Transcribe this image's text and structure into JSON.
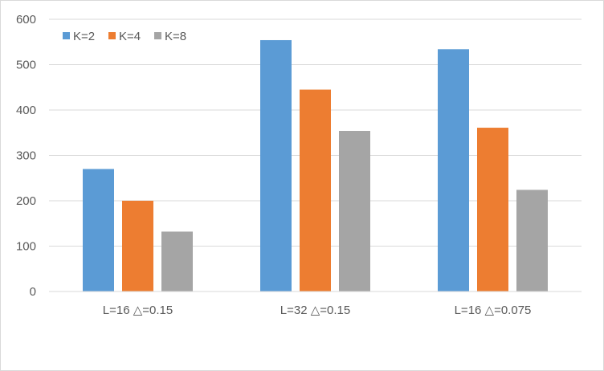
{
  "chart_data": {
    "type": "bar",
    "title": "",
    "xlabel": "",
    "ylabel": "",
    "categories": [
      "L=16 △=0.15",
      "L=32 △=0.15",
      "L=16 △=0.075"
    ],
    "series": [
      {
        "name": "K=2",
        "values": [
          270,
          554,
          534
        ],
        "color": "#5b9bd5"
      },
      {
        "name": "K=4",
        "values": [
          200,
          445,
          361
        ],
        "color": "#ed7d31"
      },
      {
        "name": "K=8",
        "values": [
          132,
          354,
          224
        ],
        "color": "#a5a5a5"
      }
    ],
    "ylim": [
      0,
      600
    ],
    "yticks": [
      0,
      100,
      200,
      300,
      400,
      500,
      600
    ],
    "grid": true,
    "legend_position": "top-left"
  }
}
